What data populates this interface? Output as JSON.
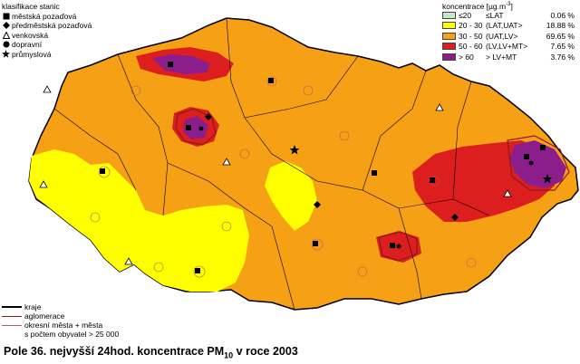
{
  "station_legend": {
    "title": "klasifikace stanic",
    "items": [
      {
        "symbol": "square",
        "label": "městská pozaďová"
      },
      {
        "symbol": "diamond",
        "label": "předměstská pozaďová"
      },
      {
        "symbol": "triangle",
        "label": "venkovská"
      },
      {
        "symbol": "circle",
        "label": "dopravní"
      },
      {
        "symbol": "star",
        "label": "průmyslová"
      }
    ]
  },
  "concentration_legend": {
    "title": "koncentrace [µg.m",
    "title_sup": "-3",
    "title_end": "]",
    "classes": [
      {
        "range": "≤20",
        "class": "≤LAT",
        "percent": "0.06 %",
        "color": "#c8e6c8"
      },
      {
        "range": "20 - 30",
        "class": "(LAT,UAT>",
        "percent": "18.88 %",
        "color": "#ffff00"
      },
      {
        "range": "30 - 50",
        "class": "(UAT,LV>",
        "percent": "69.65 %",
        "color": "#f5a015"
      },
      {
        "range": "50 - 60",
        "class": "(LV,LV+MT>",
        "percent": "7.65 %",
        "color": "#dc1e1e"
      },
      {
        "range": "> 60",
        "class": "> LV+MT",
        "percent": "3.76 %",
        "color": "#8c1e8c"
      }
    ]
  },
  "line_legend": {
    "items": [
      {
        "label": "kraje",
        "color": "#000000",
        "width": "thick"
      },
      {
        "label": "aglomerace",
        "color": "#8b1a1a",
        "width": "medium"
      },
      {
        "label": "okresní města + města",
        "color": "#b06060",
        "width": "thin"
      }
    ],
    "note": "s počtem obyvatel > 25 000"
  },
  "caption": {
    "prefix": "Pole 36. nejvyšší 24hod. koncentrace PM",
    "sub": "10",
    "suffix": " v roce 2003"
  },
  "colors": {
    "orange": "#f5a015",
    "yellow": "#ffff00",
    "red": "#dc1e1e",
    "purple": "#8c1e8c",
    "light_green": "#c8e6c8"
  }
}
